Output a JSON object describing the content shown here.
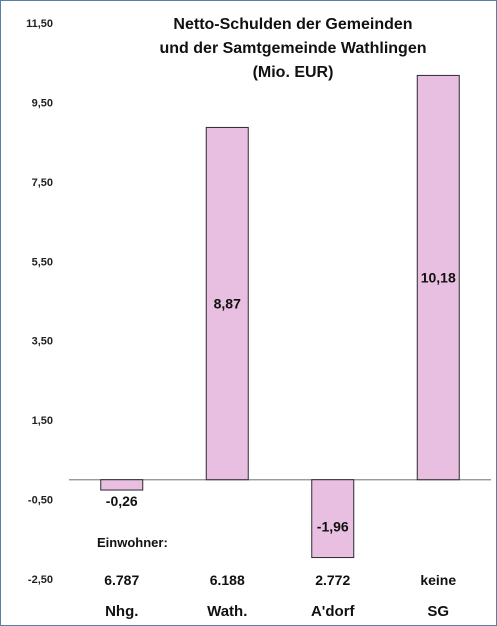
{
  "chart_data": {
    "type": "bar",
    "title_lines": [
      "Netto-Schulden der Gemeinden",
      "und der Samtgemeinde Wathlingen",
      "(Mio. EUR)"
    ],
    "categories": [
      "Nhg.",
      "Wath.",
      "A'dorf",
      "SG"
    ],
    "values": [
      -0.26,
      8.87,
      -1.96,
      10.18
    ],
    "value_labels": [
      "-0,26",
      "8,87",
      "-1,96",
      "10,18"
    ],
    "population_caption": "Einwohner:",
    "population_labels": [
      "6.787",
      "6.188",
      "2.772",
      "keine"
    ],
    "ylim": [
      -2.5,
      11.5
    ],
    "y_ticks": [
      11.5,
      9.5,
      7.5,
      5.5,
      3.5,
      1.5,
      -0.5,
      -2.5
    ],
    "y_tick_labels": [
      "11,50",
      "9,50",
      "7,50",
      "5,50",
      "3,50",
      "1,50",
      "-0,50",
      "-2,50"
    ],
    "bar_color": "#e8bfe0",
    "bar_stroke": "#2b2b2b",
    "axis_color": "#8c8c8c",
    "xlabel": "",
    "ylabel": "",
    "grid": false
  }
}
